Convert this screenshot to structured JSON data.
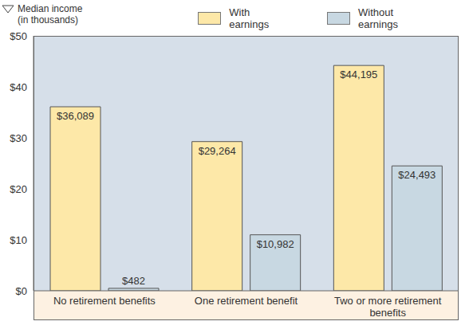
{
  "chart_data": {
    "type": "bar",
    "y_label": "Median income (in thousands)",
    "categories": [
      "No retirement benefits",
      "One retirement benefit",
      "Two or more retirement benefits"
    ],
    "series": [
      {
        "name": "With earnings",
        "color": "#fde8a8",
        "values": [
          36.089,
          29.264,
          44.195
        ],
        "value_labels": [
          "$36,089",
          "$29,264",
          "$44,195"
        ]
      },
      {
        "name": "Without earnings",
        "color": "#c8d8e2",
        "values": [
          0.482,
          10.982,
          24.493
        ],
        "value_labels": [
          "$482",
          "$10,982",
          "$24,493"
        ]
      }
    ],
    "ylim": [
      0,
      50
    ],
    "yticks": [
      {
        "value": 0,
        "label": "$0"
      },
      {
        "value": 10,
        "label": "$10"
      },
      {
        "value": 20,
        "label": "$20"
      },
      {
        "value": 30,
        "label": "$30"
      },
      {
        "value": 40,
        "label": "$40"
      },
      {
        "value": 50,
        "label": "$50"
      }
    ],
    "grid": false,
    "data_labels": true,
    "legend": "top"
  }
}
